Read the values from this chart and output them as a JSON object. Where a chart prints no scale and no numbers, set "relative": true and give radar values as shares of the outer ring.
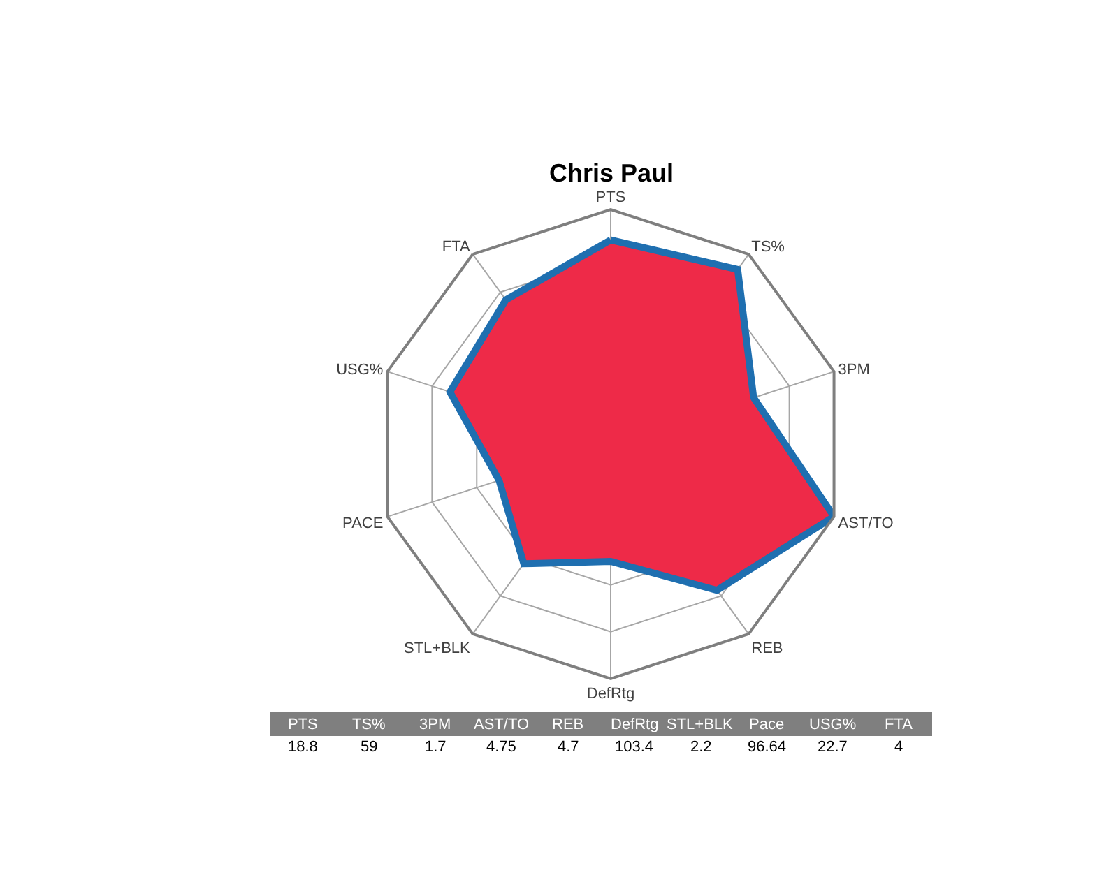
{
  "chart_data": [
    {
      "type": "radar",
      "title": "Chris Paul",
      "relative": true,
      "grid": true,
      "categories": [
        "PTS",
        "TS%",
        "3PM",
        "AST/TO",
        "REB",
        "DefRtg",
        "STL+BLK",
        "PACE",
        "USG%",
        "FTA"
      ],
      "series": [
        {
          "color": "#ee2a48",
          "values": [
            0.87,
            0.92,
            0.64,
            1.0,
            0.77,
            0.5,
            0.63,
            0.5,
            0.72,
            0.76
          ]
        }
      ]
    },
    {
      "type": "other",
      "categories": [
        "PTS",
        "TS%",
        "3PM",
        "AST/TO",
        "REB",
        "DefRtg",
        "STL+BLK",
        "Pace",
        "USG%",
        "FTA"
      ],
      "values": [
        18.8,
        59,
        1.7,
        4.75,
        4.7,
        103.4,
        2.2,
        96.64,
        22.7,
        4
      ],
      "data_labels": true
    }
  ]
}
